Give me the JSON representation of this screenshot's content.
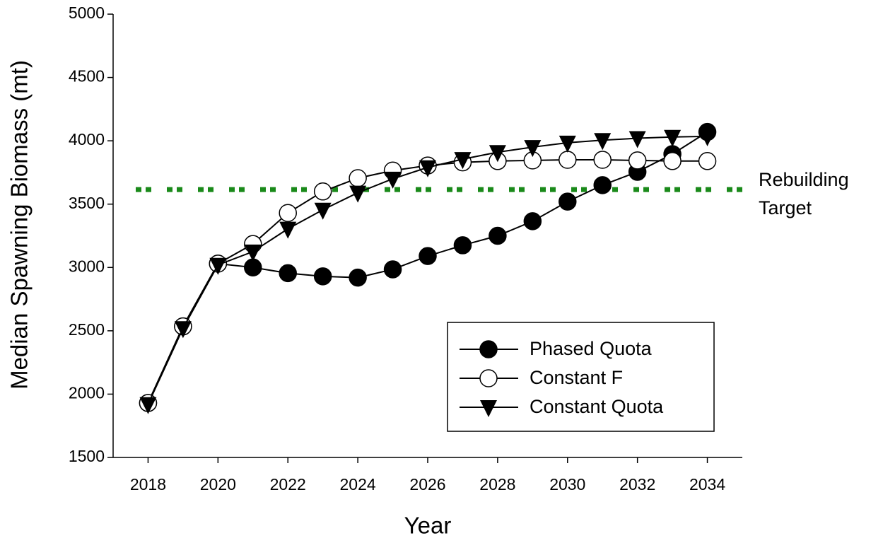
{
  "chart_data": {
    "type": "line",
    "x_label": "Year",
    "y_label": "Median Spawning Biomass (mt)",
    "x": [
      2018,
      2019,
      2020,
      2021,
      2022,
      2023,
      2024,
      2025,
      2026,
      2027,
      2028,
      2029,
      2030,
      2031,
      2032,
      2033,
      2034
    ],
    "series": [
      {
        "name": "Phased Quota",
        "color": "#000000",
        "marker": "filled-circle",
        "values": [
          1930,
          2535,
          3030,
          3000,
          2955,
          2930,
          2920,
          2985,
          3090,
          3175,
          3250,
          3365,
          3520,
          3650,
          3755,
          3895,
          4070
        ]
      },
      {
        "name": "Constant F",
        "color": "#000000",
        "marker": "open-circle",
        "values": [
          1930,
          2535,
          3030,
          3185,
          3430,
          3600,
          3705,
          3765,
          3805,
          3830,
          3840,
          3845,
          3850,
          3850,
          3845,
          3840,
          3840
        ]
      },
      {
        "name": "Constant Quota",
        "color": "#000000",
        "marker": "filled-triangle-down",
        "values": [
          1920,
          2520,
          3020,
          3125,
          3305,
          3455,
          3590,
          3700,
          3790,
          3855,
          3910,
          3950,
          3985,
          4005,
          4020,
          4030,
          4035
        ]
      }
    ],
    "reference_line": {
      "value": 3615,
      "color": "#1a8a1a",
      "label": [
        "Rebuilding",
        "Target"
      ]
    },
    "xlim": [
      2017,
      2035
    ],
    "ylim": [
      1500,
      5000
    ],
    "xticks": [
      2018,
      2020,
      2022,
      2024,
      2026,
      2028,
      2030,
      2032,
      2034
    ],
    "yticks": [
      1500,
      2000,
      2500,
      3000,
      3500,
      4000,
      4500,
      5000
    ],
    "grid": false,
    "legend": "lower right"
  }
}
